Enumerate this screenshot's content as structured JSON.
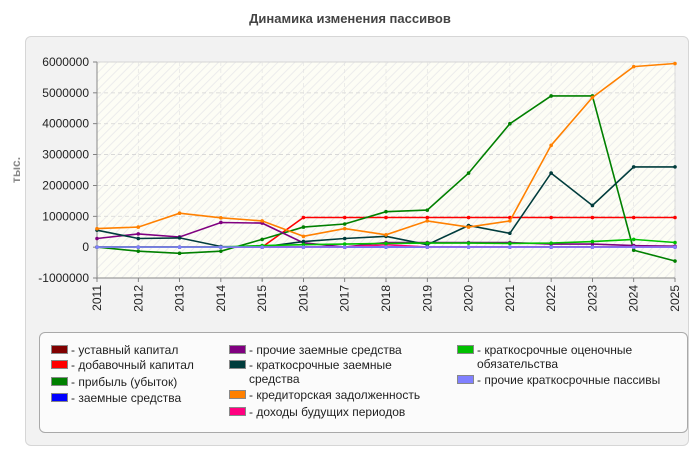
{
  "title": "Динамика изменения пассивов",
  "chart_data": {
    "type": "line",
    "ylabel": "тыс.",
    "xlabel": "",
    "ylim": [
      -1000000,
      6000000
    ],
    "yticks": [
      -1000000,
      0,
      1000000,
      2000000,
      3000000,
      4000000,
      5000000,
      6000000
    ],
    "grid": true,
    "legend_position": "bottom",
    "x": [
      "2011",
      "2012",
      "2013",
      "2014",
      "2015",
      "2016",
      "2017",
      "2018",
      "2019",
      "2020",
      "2021",
      "2022",
      "2023",
      "2024",
      "2025"
    ],
    "series": [
      {
        "name": "уставный капитал",
        "color": "#800000",
        "values": [
          0,
          0,
          0,
          0,
          0,
          0,
          0,
          0,
          0,
          0,
          0,
          0,
          0,
          0,
          0
        ]
      },
      {
        "name": "добавочный капитал",
        "color": "#ff0000",
        "values": [
          null,
          null,
          null,
          null,
          0,
          960000,
          960000,
          960000,
          960000,
          960000,
          960000,
          960000,
          960000,
          960000,
          960000
        ]
      },
      {
        "name": "прибыль (убыток)",
        "color": "#008000",
        "values": [
          0,
          -130000,
          -200000,
          -130000,
          250000,
          650000,
          750000,
          1150000,
          1200000,
          2400000,
          4000000,
          4900000,
          4900000,
          -100000,
          -450000
        ]
      },
      {
        "name": "заемные средства",
        "color": "#0000ff",
        "values": [
          0,
          0,
          0,
          0,
          0,
          0,
          0,
          0,
          0,
          0,
          0,
          0,
          0,
          0,
          0
        ]
      },
      {
        "name": "прочие заемные средства",
        "color": "#800080",
        "values": [
          280000,
          430000,
          330000,
          800000,
          780000,
          140000,
          0,
          150000,
          150000,
          150000,
          150000,
          100000,
          100000,
          50000,
          30000
        ]
      },
      {
        "name": "краткосрочные заемные средства",
        "color": "#003c3c",
        "values": [
          550000,
          280000,
          300000,
          20000,
          0,
          180000,
          280000,
          350000,
          80000,
          700000,
          450000,
          2400000,
          1350000,
          2600000,
          2600000
        ]
      },
      {
        "name": "кредиторская задолженность",
        "color": "#ff8000",
        "values": [
          600000,
          650000,
          1100000,
          950000,
          850000,
          350000,
          600000,
          400000,
          850000,
          650000,
          850000,
          3300000,
          4850000,
          5850000,
          5950000
        ]
      },
      {
        "name": "доходы будущих периодов",
        "color": "#ff0080",
        "values": [
          0,
          0,
          0,
          0,
          0,
          0,
          0,
          80000,
          0,
          0,
          0,
          0,
          0,
          0,
          0
        ]
      },
      {
        "name": "краткосрочные оценочные обязательства",
        "color": "#00c000",
        "values": [
          0,
          0,
          0,
          0,
          50000,
          80000,
          100000,
          120000,
          130000,
          130000,
          120000,
          130000,
          180000,
          250000,
          150000
        ]
      },
      {
        "name": "прочие краткосрочные пассивы",
        "color": "#8080ff",
        "values": [
          0,
          0,
          0,
          0,
          0,
          0,
          0,
          0,
          0,
          0,
          0,
          0,
          0,
          0,
          0
        ]
      }
    ]
  },
  "legend_labels": [
    "- уставный капитал",
    "- добавочный капитал",
    "- прибыль (убыток)",
    "- заемные средства",
    "- прочие заемные средства",
    "- краткосрочные заемные средства",
    "- кредиторская задолженность",
    "- доходы будущих периодов",
    "- краткосрочные оценочные обязательства",
    "- прочие краткосрочные пассивы"
  ]
}
